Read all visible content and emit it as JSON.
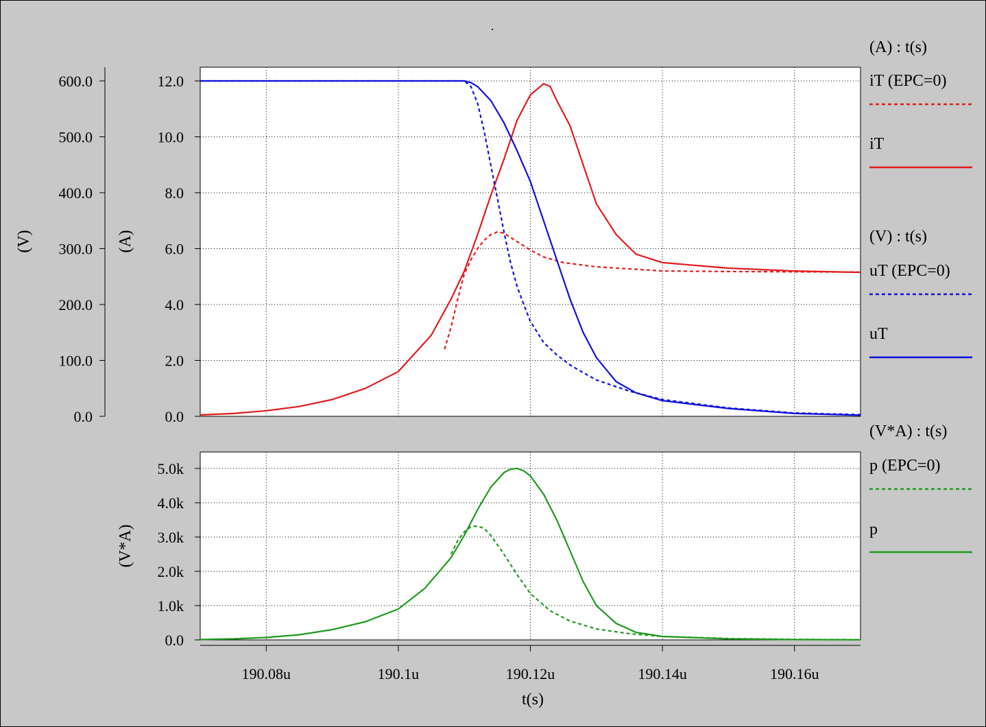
{
  "page_title": ".",
  "chart_data": [
    {
      "type": "line",
      "panel": "top",
      "x_unit_label": "t(s)",
      "left_axis": {
        "label": "(V)",
        "ylim": [
          0,
          600
        ],
        "ticks": [
          "0.0",
          "100.0",
          "200.0",
          "300.0",
          "400.0",
          "500.0",
          "600.0"
        ]
      },
      "right_axis": {
        "label": "(A)",
        "ylim": [
          0,
          12
        ],
        "ticks": [
          "0.0",
          "2.0",
          "4.0",
          "6.0",
          "8.0",
          "10.0",
          "12.0"
        ]
      },
      "legend_groups": [
        "(A) : t(s)",
        "(V) : t(s)"
      ],
      "series": [
        {
          "name": "iT (EPC=0)",
          "axis": "A",
          "color": "#e31a1c",
          "dashed": true,
          "x": [
            190.107,
            190.108,
            190.109,
            190.11,
            190.111,
            190.112,
            190.113,
            190.114,
            190.115,
            190.116,
            190.117,
            190.118,
            190.12,
            190.122,
            190.125,
            190.13,
            190.14,
            190.15,
            190.16,
            190.17
          ],
          "y": [
            2.4,
            3.2,
            4.2,
            5.1,
            5.6,
            6.0,
            6.3,
            6.5,
            6.6,
            6.55,
            6.4,
            6.25,
            5.95,
            5.7,
            5.5,
            5.35,
            5.2,
            5.18,
            5.17,
            5.16
          ]
        },
        {
          "name": "iT",
          "axis": "A",
          "color": "#e31a1c",
          "dashed": false,
          "x": [
            190.07,
            190.075,
            190.08,
            190.085,
            190.09,
            190.095,
            190.1,
            190.105,
            190.108,
            190.11,
            190.112,
            190.114,
            190.116,
            190.118,
            190.12,
            190.122,
            190.123,
            190.124,
            190.126,
            190.128,
            190.13,
            190.133,
            190.136,
            190.14,
            190.15,
            190.16,
            190.17
          ],
          "y": [
            0.05,
            0.1,
            0.2,
            0.35,
            0.6,
            1.0,
            1.6,
            2.9,
            4.2,
            5.2,
            6.5,
            7.9,
            9.2,
            10.6,
            11.5,
            11.9,
            11.8,
            11.3,
            10.4,
            9.0,
            7.6,
            6.5,
            5.8,
            5.5,
            5.3,
            5.2,
            5.15
          ]
        },
        {
          "name": "uT (EPC=0)",
          "axis": "V",
          "color": "#1010e0",
          "dashed": true,
          "x": [
            190.07,
            190.11,
            190.111,
            190.112,
            190.113,
            190.114,
            190.115,
            190.116,
            190.117,
            190.118,
            190.119,
            190.12,
            190.122,
            190.124,
            190.126,
            190.128,
            190.13,
            190.135,
            190.14,
            190.15,
            190.16,
            190.17
          ],
          "y": [
            600,
            600,
            590,
            560,
            510,
            450,
            390,
            330,
            275,
            232,
            200,
            170,
            132,
            110,
            92,
            78,
            65,
            45,
            30,
            15,
            6,
            3
          ]
        },
        {
          "name": "uT",
          "axis": "V",
          "color": "#1010e0",
          "dashed": false,
          "x": [
            190.07,
            190.11,
            190.111,
            190.112,
            190.114,
            190.116,
            190.118,
            190.12,
            190.122,
            190.124,
            190.126,
            190.128,
            190.13,
            190.133,
            190.136,
            190.14,
            190.15,
            190.16,
            190.17
          ],
          "y": [
            600,
            600,
            597,
            590,
            565,
            525,
            475,
            420,
            350,
            280,
            210,
            150,
            105,
            62,
            42,
            28,
            14,
            5,
            2
          ]
        }
      ]
    },
    {
      "type": "line",
      "panel": "bottom",
      "x_unit_label": "t(s)",
      "left_axis": {
        "label": "(V*A)",
        "ylim": [
          0,
          5000
        ],
        "ticks": [
          "0.0",
          "1.0k",
          "2.0k",
          "3.0k",
          "4.0k",
          "5.0k"
        ]
      },
      "legend_groups": [
        "(V*A) : t(s)"
      ],
      "series": [
        {
          "name": "p (EPC=0)",
          "axis": "VA",
          "color": "#1e9a1e",
          "dashed": true,
          "x": [
            190.108,
            190.109,
            190.11,
            190.111,
            190.112,
            190.113,
            190.114,
            190.116,
            190.118,
            190.12,
            190.123,
            190.126,
            190.13,
            190.135,
            190.14,
            190.15,
            190.16,
            190.17
          ],
          "y": [
            2500,
            2900,
            3150,
            3300,
            3320,
            3250,
            3050,
            2500,
            1900,
            1350,
            850,
            550,
            320,
            180,
            100,
            40,
            15,
            8
          ]
        },
        {
          "name": "p",
          "axis": "VA",
          "color": "#1e9a1e",
          "dashed": false,
          "x": [
            190.07,
            190.075,
            190.08,
            190.085,
            190.09,
            190.095,
            190.1,
            190.104,
            190.108,
            190.11,
            190.112,
            190.114,
            190.116,
            190.117,
            190.118,
            190.119,
            190.12,
            190.122,
            190.124,
            190.126,
            190.128,
            190.13,
            190.133,
            190.136,
            190.14,
            190.15,
            190.16,
            190.17
          ],
          "y": [
            10,
            30,
            70,
            150,
            300,
            530,
            900,
            1500,
            2400,
            3050,
            3800,
            4450,
            4880,
            4980,
            5000,
            4930,
            4780,
            4250,
            3500,
            2600,
            1700,
            1000,
            480,
            220,
            100,
            30,
            10,
            5
          ]
        }
      ]
    }
  ],
  "x_axis": {
    "label": "t(s)",
    "xlim": [
      190.07,
      190.17
    ],
    "ticks": [
      {
        "value": 190.08,
        "label": "190.08u"
      },
      {
        "value": 190.1,
        "label": "190.1u"
      },
      {
        "value": 190.12,
        "label": "190.12u"
      },
      {
        "value": 190.14,
        "label": "190.14u"
      },
      {
        "value": 190.16,
        "label": "190.16u"
      }
    ]
  }
}
